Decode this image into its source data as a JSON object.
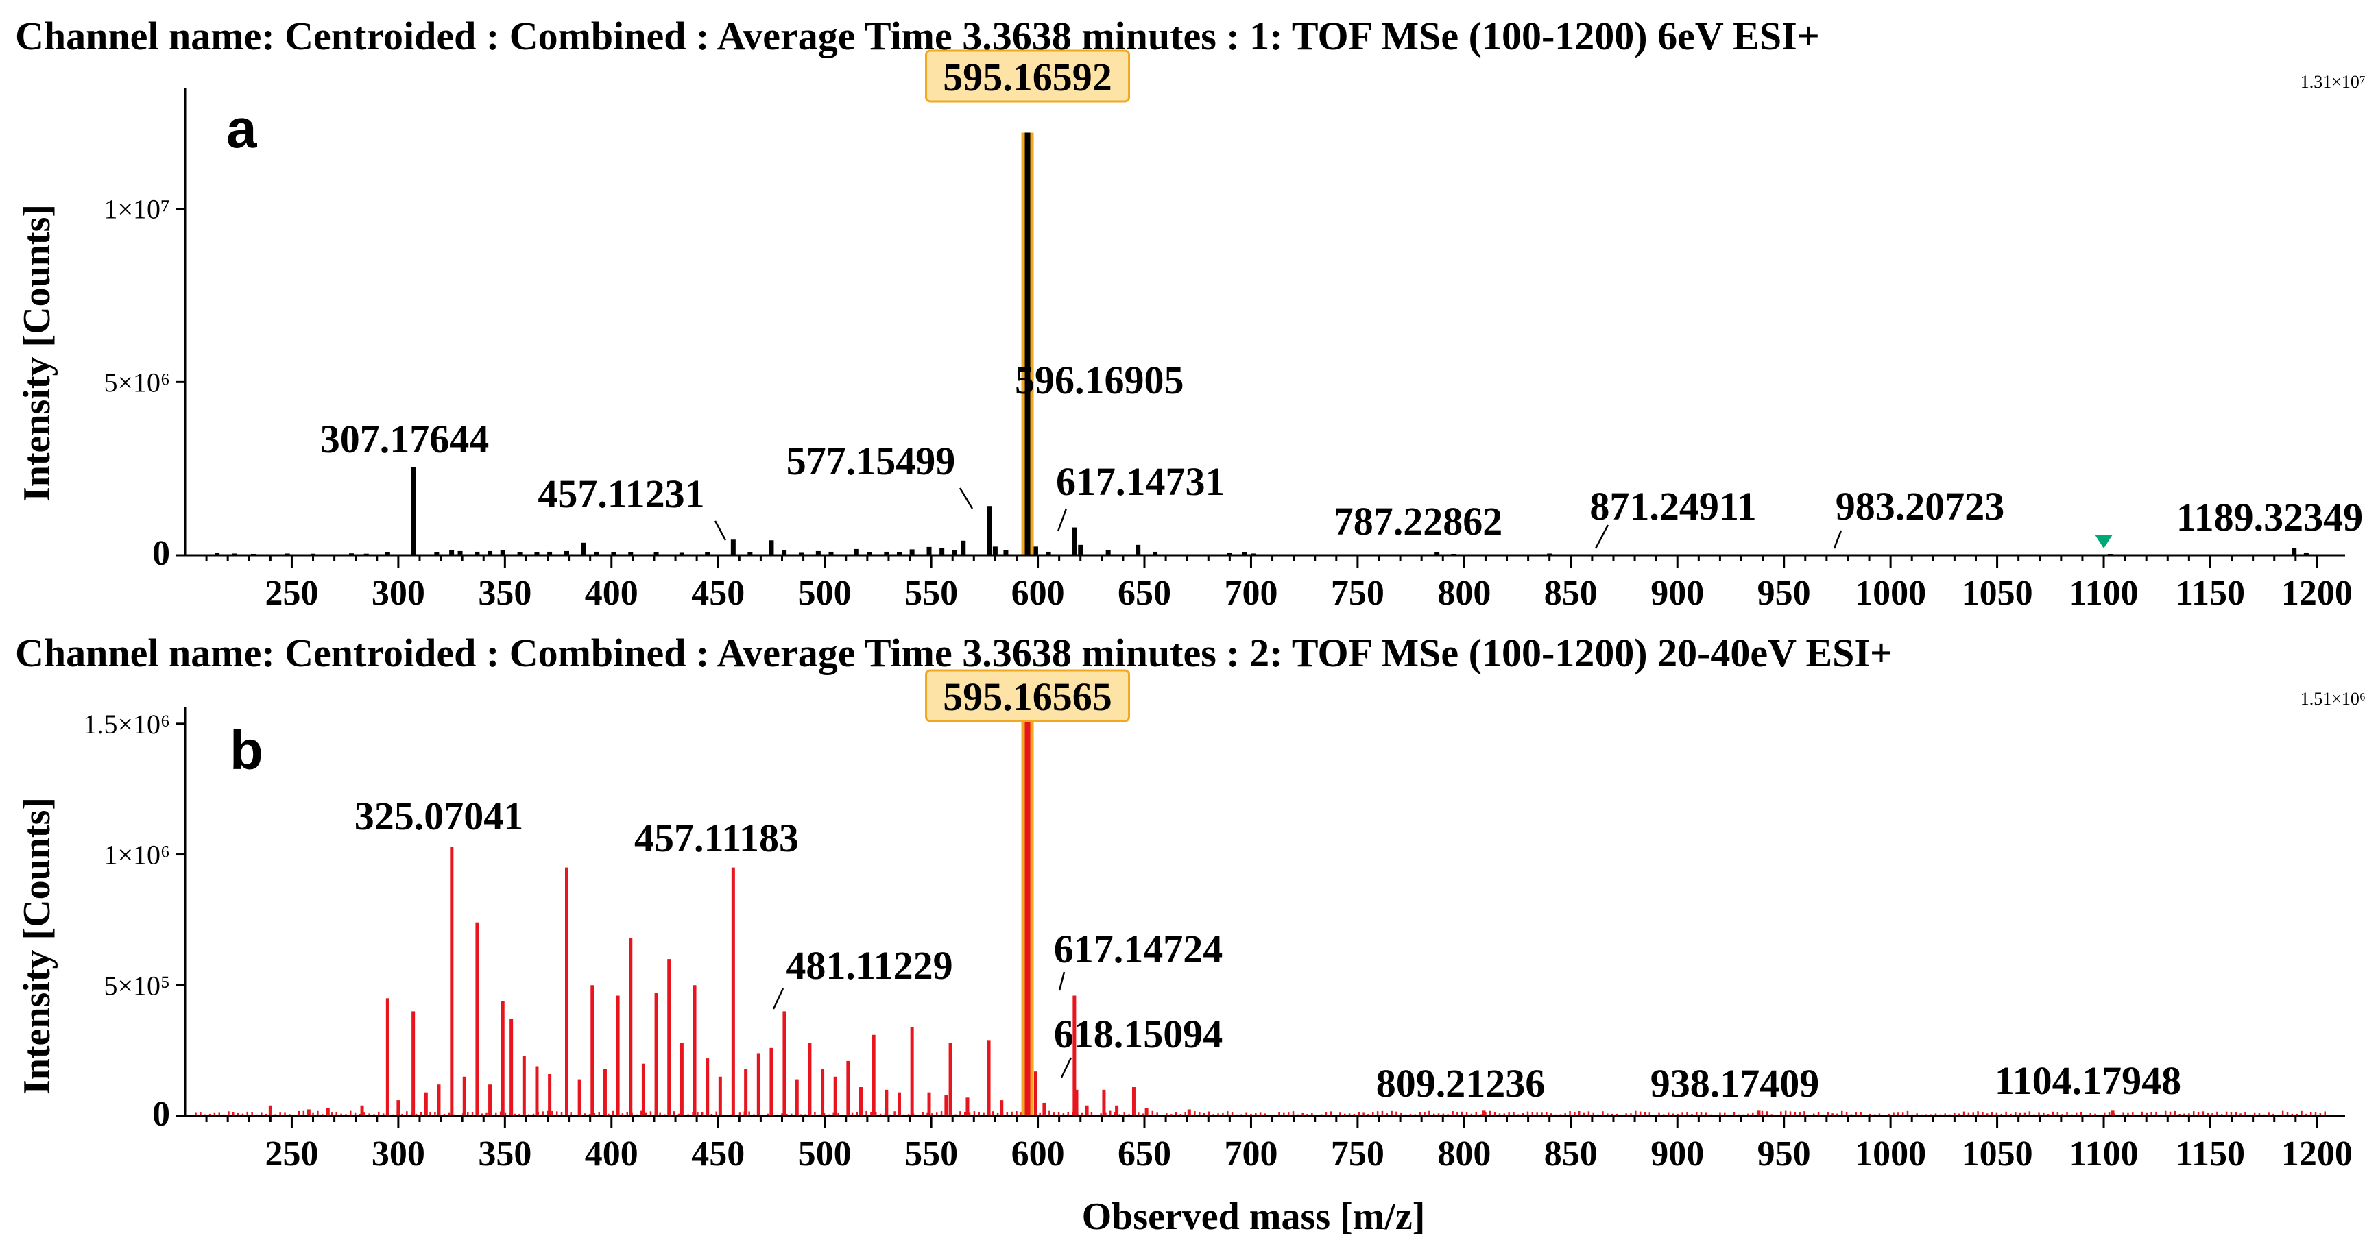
{
  "chart_data": [
    {
      "panel": "a",
      "type": "bar",
      "title": "Channel name: Centroided : Combined : Average Time 3.3638 minutes : 1: TOF MSe (100-1200) 6eV ESI+",
      "xlabel": "",
      "ylabel": "Intensity [Counts]",
      "xlim": [
        200,
        1210
      ],
      "ylim": [
        0,
        13100000
      ],
      "scale_label": "1.31×10⁷",
      "x_ticks": [
        250,
        300,
        350,
        400,
        450,
        500,
        550,
        600,
        650,
        700,
        750,
        800,
        850,
        900,
        950,
        1000,
        1050,
        1100,
        1150,
        1200
      ],
      "y_ticks": [
        {
          "value": 0,
          "label": "0"
        },
        {
          "value": 5000000,
          "label": "5×10⁶"
        },
        {
          "value": 10000000,
          "label": "1×10⁷"
        }
      ],
      "color": "#000000",
      "highlight": {
        "label": "595.16592",
        "mz": 595.16592,
        "value": 12200000,
        "box_color": "#fde4a6",
        "bar_color": "#f0a820"
      },
      "peaks": [
        {
          "mz": 215,
          "value": 60000
        },
        {
          "mz": 223,
          "value": 50000
        },
        {
          "mz": 232,
          "value": 40000
        },
        {
          "mz": 248,
          "value": 50000
        },
        {
          "mz": 260,
          "value": 45000
        },
        {
          "mz": 278,
          "value": 55000
        },
        {
          "mz": 285,
          "value": 45000
        },
        {
          "mz": 295,
          "value": 80000
        },
        {
          "mz": 307.17644,
          "value": 2550000
        },
        {
          "mz": 318,
          "value": 90000
        },
        {
          "mz": 325,
          "value": 150000
        },
        {
          "mz": 329,
          "value": 120000
        },
        {
          "mz": 337,
          "value": 100000
        },
        {
          "mz": 343,
          "value": 120000
        },
        {
          "mz": 349,
          "value": 150000
        },
        {
          "mz": 357,
          "value": 90000
        },
        {
          "mz": 365,
          "value": 80000
        },
        {
          "mz": 371,
          "value": 100000
        },
        {
          "mz": 379,
          "value": 120000
        },
        {
          "mz": 387,
          "value": 360000
        },
        {
          "mz": 393,
          "value": 100000
        },
        {
          "mz": 401,
          "value": 80000
        },
        {
          "mz": 409,
          "value": 80000
        },
        {
          "mz": 421,
          "value": 90000
        },
        {
          "mz": 433,
          "value": 70000
        },
        {
          "mz": 445,
          "value": 90000
        },
        {
          "mz": 457.11231,
          "value": 450000
        },
        {
          "mz": 465,
          "value": 90000
        },
        {
          "mz": 475,
          "value": 430000
        },
        {
          "mz": 481,
          "value": 150000
        },
        {
          "mz": 489,
          "value": 70000
        },
        {
          "mz": 497,
          "value": 120000
        },
        {
          "mz": 503,
          "value": 100000
        },
        {
          "mz": 515,
          "value": 180000
        },
        {
          "mz": 521,
          "value": 90000
        },
        {
          "mz": 529,
          "value": 100000
        },
        {
          "mz": 535,
          "value": 90000
        },
        {
          "mz": 541,
          "value": 170000
        },
        {
          "mz": 549,
          "value": 240000
        },
        {
          "mz": 555,
          "value": 200000
        },
        {
          "mz": 561,
          "value": 150000
        },
        {
          "mz": 565,
          "value": 420000
        },
        {
          "mz": 577.15499,
          "value": 1420000
        },
        {
          "mz": 580,
          "value": 250000
        },
        {
          "mz": 585,
          "value": 150000
        },
        {
          "mz": 596.16905,
          "value": 3500000
        },
        {
          "mz": 599,
          "value": 250000
        },
        {
          "mz": 605,
          "value": 100000
        },
        {
          "mz": 617.14731,
          "value": 800000
        },
        {
          "mz": 620,
          "value": 300000
        },
        {
          "mz": 633,
          "value": 150000
        },
        {
          "mz": 647,
          "value": 300000
        },
        {
          "mz": 655,
          "value": 100000
        },
        {
          "mz": 690,
          "value": 60000
        },
        {
          "mz": 697,
          "value": 80000
        },
        {
          "mz": 701,
          "value": 50000
        },
        {
          "mz": 787.22862,
          "value": 80000
        },
        {
          "mz": 795,
          "value": 40000
        },
        {
          "mz": 840,
          "value": 50000
        },
        {
          "mz": 871.24911,
          "value": 30000
        },
        {
          "mz": 983.20723,
          "value": 30000
        },
        {
          "mz": 1103,
          "value": 40000
        },
        {
          "mz": 1189.32349,
          "value": 200000
        },
        {
          "mz": 1195,
          "value": 60000
        }
      ],
      "labels": [
        {
          "text": "307.17644",
          "mz": 307.17644
        },
        {
          "text": "457.11231",
          "mz": 457.11231
        },
        {
          "text": "577.15499",
          "mz": 577.15499
        },
        {
          "text": "596.16905",
          "mz": 596.16905
        },
        {
          "text": "617.14731",
          "mz": 617.14731
        },
        {
          "text": "787.22862",
          "mz": 787.22862
        },
        {
          "text": "871.24911",
          "mz": 871.24911
        },
        {
          "text": "983.20723",
          "mz": 983.20723
        },
        {
          "text": "1189.32349",
          "mz": 1189.32349
        }
      ],
      "marker": {
        "mz": 1100,
        "shape": "down-triangle",
        "color": "#00a878"
      }
    },
    {
      "panel": "b",
      "type": "bar",
      "title": "Channel name: Centroided : Combined : Average Time 3.3638 minutes : 2: TOF MSe (100-1200) 20-40eV ESI+",
      "xlabel": "Observed mass [m/z]",
      "ylabel": "Intensity [Counts]",
      "xlim": [
        200,
        1210
      ],
      "ylim": [
        0,
        1510000
      ],
      "scale_label": "1.51×10⁶",
      "x_ticks": [
        250,
        300,
        350,
        400,
        450,
        500,
        550,
        600,
        650,
        700,
        750,
        800,
        850,
        900,
        950,
        1000,
        1050,
        1100,
        1150,
        1200
      ],
      "y_ticks": [
        {
          "value": 0,
          "label": "0"
        },
        {
          "value": 500000,
          "label": "5×10⁵"
        },
        {
          "value": 1000000,
          "label": "1×10⁶"
        },
        {
          "value": 1500000,
          "label": "1.5×10⁶"
        }
      ],
      "color": "#e8141e",
      "highlight": {
        "label": "595.16565",
        "mz": 595.16565,
        "value": 1510000,
        "box_color": "#fde4a6",
        "bar_color": "#f0a820"
      },
      "peaks": [
        {
          "mz": 240,
          "value": 40000
        },
        {
          "mz": 258,
          "value": 25000
        },
        {
          "mz": 267,
          "value": 30000
        },
        {
          "mz": 283,
          "value": 40000
        },
        {
          "mz": 295,
          "value": 450000
        },
        {
          "mz": 300,
          "value": 60000
        },
        {
          "mz": 307,
          "value": 400000
        },
        {
          "mz": 313,
          "value": 90000
        },
        {
          "mz": 319,
          "value": 120000
        },
        {
          "mz": 325.07041,
          "value": 1030000
        },
        {
          "mz": 331,
          "value": 150000
        },
        {
          "mz": 337,
          "value": 740000
        },
        {
          "mz": 343,
          "value": 120000
        },
        {
          "mz": 349,
          "value": 440000
        },
        {
          "mz": 353,
          "value": 370000
        },
        {
          "mz": 359,
          "value": 230000
        },
        {
          "mz": 365,
          "value": 190000
        },
        {
          "mz": 371,
          "value": 160000
        },
        {
          "mz": 379,
          "value": 950000
        },
        {
          "mz": 385,
          "value": 140000
        },
        {
          "mz": 391,
          "value": 500000
        },
        {
          "mz": 397,
          "value": 180000
        },
        {
          "mz": 403,
          "value": 460000
        },
        {
          "mz": 409,
          "value": 680000
        },
        {
          "mz": 415,
          "value": 200000
        },
        {
          "mz": 421,
          "value": 470000
        },
        {
          "mz": 427,
          "value": 600000
        },
        {
          "mz": 433,
          "value": 280000
        },
        {
          "mz": 439,
          "value": 500000
        },
        {
          "mz": 445,
          "value": 220000
        },
        {
          "mz": 451,
          "value": 150000
        },
        {
          "mz": 457.11183,
          "value": 950000
        },
        {
          "mz": 463,
          "value": 180000
        },
        {
          "mz": 469,
          "value": 240000
        },
        {
          "mz": 475,
          "value": 260000
        },
        {
          "mz": 481.11229,
          "value": 400000
        },
        {
          "mz": 487,
          "value": 140000
        },
        {
          "mz": 493,
          "value": 280000
        },
        {
          "mz": 499,
          "value": 180000
        },
        {
          "mz": 505,
          "value": 150000
        },
        {
          "mz": 511,
          "value": 210000
        },
        {
          "mz": 517,
          "value": 110000
        },
        {
          "mz": 523,
          "value": 310000
        },
        {
          "mz": 529,
          "value": 100000
        },
        {
          "mz": 535,
          "value": 90000
        },
        {
          "mz": 541,
          "value": 340000
        },
        {
          "mz": 549,
          "value": 90000
        },
        {
          "mz": 557,
          "value": 80000
        },
        {
          "mz": 559,
          "value": 280000
        },
        {
          "mz": 567,
          "value": 70000
        },
        {
          "mz": 577,
          "value": 290000
        },
        {
          "mz": 583,
          "value": 60000
        },
        {
          "mz": 599,
          "value": 170000
        },
        {
          "mz": 603,
          "value": 50000
        },
        {
          "mz": 617.14724,
          "value": 460000
        },
        {
          "mz": 618.15094,
          "value": 100000
        },
        {
          "mz": 623,
          "value": 40000
        },
        {
          "mz": 631,
          "value": 100000
        },
        {
          "mz": 637,
          "value": 40000
        },
        {
          "mz": 645,
          "value": 110000
        },
        {
          "mz": 651,
          "value": 30000
        },
        {
          "mz": 671,
          "value": 25000
        },
        {
          "mz": 809.21236,
          "value": 20000
        },
        {
          "mz": 938.17409,
          "value": 20000
        },
        {
          "mz": 1104.17948,
          "value": 20000
        }
      ],
      "noise_floor": 15000,
      "labels": [
        {
          "text": "325.07041",
          "mz": 325.07041
        },
        {
          "text": "457.11183",
          "mz": 457.11183
        },
        {
          "text": "481.11229",
          "mz": 481.11229
        },
        {
          "text": "617.14724",
          "mz": 617.14724
        },
        {
          "text": "618.15094",
          "mz": 618.15094
        },
        {
          "text": "809.21236",
          "mz": 809.21236
        },
        {
          "text": "938.17409",
          "mz": 938.17409
        },
        {
          "text": "1104.17948",
          "mz": 1104.17948
        }
      ]
    }
  ]
}
